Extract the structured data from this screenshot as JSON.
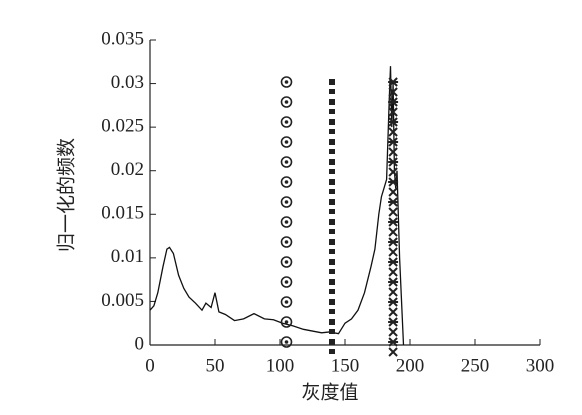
{
  "chart_data": {
    "type": "line",
    "xlabel": "灰度值",
    "ylabel": "归一化的频数",
    "xlim": [
      0,
      300
    ],
    "xticks": [
      0,
      50,
      100,
      150,
      200,
      250,
      300
    ],
    "ylim": [
      0,
      0.035
    ],
    "yticks": [
      0,
      0.005,
      0.01,
      0.015,
      0.02,
      0.025,
      0.03,
      0.035
    ],
    "series": [
      {
        "color": "#111111",
        "x": [
          0,
          3,
          6,
          10,
          13,
          15,
          18,
          22,
          26,
          30,
          35,
          40,
          43,
          47,
          50,
          53,
          58,
          65,
          72,
          80,
          88,
          95,
          102,
          110,
          118,
          125,
          132,
          138,
          145,
          150,
          155,
          160,
          165,
          170,
          173,
          176,
          178,
          180,
          182,
          184,
          185,
          186,
          187,
          188,
          189,
          190,
          192,
          195
        ],
        "values": [
          0.004,
          0.0045,
          0.006,
          0.009,
          0.011,
          0.0112,
          0.0105,
          0.008,
          0.0065,
          0.0055,
          0.0048,
          0.004,
          0.0048,
          0.0043,
          0.006,
          0.0038,
          0.0035,
          0.0028,
          0.003,
          0.0036,
          0.003,
          0.0029,
          0.0025,
          0.0022,
          0.0018,
          0.0016,
          0.0014,
          0.0015,
          0.0013,
          0.0025,
          0.003,
          0.004,
          0.006,
          0.009,
          0.011,
          0.015,
          0.017,
          0.018,
          0.019,
          0.028,
          0.032,
          0.025,
          0.03,
          0.02,
          0.018,
          0.02,
          0.01,
          0
        ]
      }
    ],
    "vlines": [
      {
        "x": 105,
        "ymax": 0.0305,
        "marker": "circle",
        "color": "#222222"
      },
      {
        "x": 140,
        "ymax": 0.031,
        "marker": "square",
        "color": "#222222"
      },
      {
        "x": 187,
        "ymax": 0.0315,
        "marker": "star",
        "color": "#222222"
      }
    ]
  }
}
